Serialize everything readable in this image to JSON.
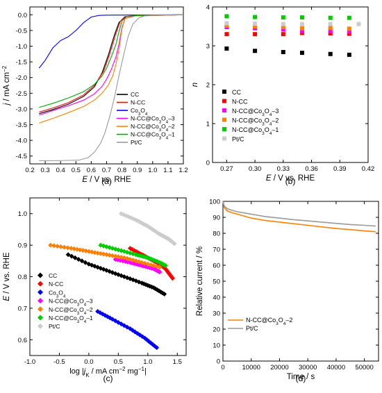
{
  "chart_data": [
    {
      "id": "a",
      "type": "line",
      "caption": "(a)",
      "xlabel": "E / V vs. RHE",
      "ylabel": "j / mA cm⁻²",
      "xlim": [
        0.2,
        1.2
      ],
      "ylim": [
        -4.75,
        0.25
      ],
      "xticks": [
        0.2,
        0.3,
        0.4,
        0.5,
        0.6,
        0.7,
        0.8,
        0.9,
        1.0,
        1.1,
        1.2
      ],
      "xtick_labels": [
        "0.2",
        "0.3",
        "0.4",
        "0.5",
        "0.6",
        "0.7",
        "0.8",
        "0.9",
        "1.0",
        "1.1",
        "1.2"
      ],
      "yticks": [
        0.0,
        -0.5,
        -1.0,
        -1.5,
        -2.0,
        -2.5,
        -3.0,
        -3.5,
        -4.0,
        -4.5
      ],
      "ytick_labels": [
        "0.0",
        "-0.5",
        "-1.0",
        "-1.5",
        "-2.0",
        "-2.5",
        "-3.0",
        "-3.5",
        "-4.0",
        "-4.5"
      ],
      "legend_position": "bottom-right",
      "series": [
        {
          "name": "CC",
          "color": "#000000",
          "points": [
            [
              0.26,
              -3.15
            ],
            [
              0.35,
              -3.02
            ],
            [
              0.45,
              -2.85
            ],
            [
              0.55,
              -2.6
            ],
            [
              0.62,
              -2.3
            ],
            [
              0.67,
              -1.85
            ],
            [
              0.71,
              -1.3
            ],
            [
              0.75,
              -0.65
            ],
            [
              0.78,
              -0.25
            ],
            [
              0.82,
              -0.06
            ],
            [
              0.9,
              -0.02
            ],
            [
              1.2,
              0.0
            ]
          ]
        },
        {
          "name": "N-CC",
          "color": "#ff0000",
          "points": [
            [
              0.26,
              -3.1
            ],
            [
              0.35,
              -2.97
            ],
            [
              0.45,
              -2.8
            ],
            [
              0.55,
              -2.55
            ],
            [
              0.62,
              -2.25
            ],
            [
              0.68,
              -1.8
            ],
            [
              0.72,
              -1.25
            ],
            [
              0.76,
              -0.6
            ],
            [
              0.79,
              -0.2
            ],
            [
              0.83,
              -0.05
            ],
            [
              0.9,
              -0.02
            ],
            [
              1.2,
              0.0
            ]
          ]
        },
        {
          "name": "Co₃O₄",
          "color": "#0000ff",
          "points": [
            [
              0.26,
              -1.7
            ],
            [
              0.3,
              -1.45
            ],
            [
              0.35,
              -1.05
            ],
            [
              0.4,
              -0.82
            ],
            [
              0.45,
              -0.7
            ],
            [
              0.5,
              -0.5
            ],
            [
              0.55,
              -0.25
            ],
            [
              0.6,
              -0.07
            ],
            [
              0.65,
              -0.02
            ],
            [
              0.7,
              -0.01
            ],
            [
              1.2,
              0.0
            ]
          ]
        },
        {
          "name": "N-CC@Co₃O₄–3",
          "color": "#ff00ff",
          "points": [
            [
              0.26,
              -3.2
            ],
            [
              0.35,
              -3.05
            ],
            [
              0.45,
              -2.9
            ],
            [
              0.55,
              -2.72
            ],
            [
              0.62,
              -2.52
            ],
            [
              0.67,
              -2.28
            ],
            [
              0.7,
              -2.05
            ],
            [
              0.73,
              -1.75
            ],
            [
              0.76,
              -1.35
            ],
            [
              0.78,
              -0.95
            ],
            [
              0.8,
              -0.4
            ],
            [
              0.82,
              -0.12
            ],
            [
              0.88,
              -0.04
            ],
            [
              1.2,
              0.0
            ]
          ]
        },
        {
          "name": "N-CC@Co₃O₄–2",
          "color": "#ff8000",
          "points": [
            [
              0.26,
              -3.45
            ],
            [
              0.35,
              -3.3
            ],
            [
              0.45,
              -3.12
            ],
            [
              0.55,
              -2.92
            ],
            [
              0.62,
              -2.72
            ],
            [
              0.67,
              -2.5
            ],
            [
              0.71,
              -2.25
            ],
            [
              0.74,
              -1.95
            ],
            [
              0.76,
              -1.6
            ],
            [
              0.78,
              -1.1
            ],
            [
              0.8,
              -0.45
            ],
            [
              0.82,
              -0.12
            ],
            [
              0.87,
              -0.04
            ],
            [
              1.2,
              0.0
            ]
          ]
        },
        {
          "name": "N-CC@Co₃O₄–1",
          "color": "#00aa00",
          "points": [
            [
              0.26,
              -2.95
            ],
            [
              0.35,
              -2.82
            ],
            [
              0.45,
              -2.65
            ],
            [
              0.55,
              -2.45
            ],
            [
              0.62,
              -2.22
            ],
            [
              0.67,
              -1.95
            ],
            [
              0.7,
              -1.7
            ],
            [
              0.73,
              -1.35
            ],
            [
              0.76,
              -0.95
            ],
            [
              0.78,
              -0.55
            ],
            [
              0.8,
              -0.2
            ],
            [
              0.83,
              -0.06
            ],
            [
              0.9,
              -0.02
            ],
            [
              1.2,
              0.0
            ]
          ]
        },
        {
          "name": "Pt/C",
          "color": "#999999",
          "points": [
            [
              0.26,
              -4.65
            ],
            [
              0.35,
              -4.65
            ],
            [
              0.45,
              -4.64
            ],
            [
              0.52,
              -4.63
            ],
            [
              0.58,
              -4.55
            ],
            [
              0.62,
              -4.38
            ],
            [
              0.66,
              -4.1
            ],
            [
              0.69,
              -3.75
            ],
            [
              0.72,
              -3.25
            ],
            [
              0.75,
              -2.65
            ],
            [
              0.78,
              -1.95
            ],
            [
              0.81,
              -1.3
            ],
            [
              0.84,
              -0.7
            ],
            [
              0.87,
              -0.3
            ],
            [
              0.91,
              -0.1
            ],
            [
              0.95,
              -0.03
            ],
            [
              1.0,
              -0.01
            ],
            [
              1.2,
              0.0
            ]
          ]
        }
      ]
    },
    {
      "id": "b",
      "type": "scatter",
      "caption": "(b)",
      "xlabel": "E / V vs. RHE",
      "ylabel": "n",
      "xlim": [
        0.255,
        0.42
      ],
      "ylim": [
        0,
        4
      ],
      "xticks": [
        0.27,
        0.3,
        0.33,
        0.36,
        0.39,
        0.42
      ],
      "xtick_labels": [
        "0.27",
        "0.30",
        "0.33",
        "0.36",
        "0.39",
        "0.42"
      ],
      "yticks": [
        0,
        1,
        2,
        3,
        4
      ],
      "ytick_labels": [
        "0",
        "1",
        "2",
        "3",
        "4"
      ],
      "legend_position": "bottom-left",
      "series": [
        {
          "name": "CC",
          "color": "#000000",
          "points": [
            [
              0.27,
              2.93
            ],
            [
              0.3,
              2.87
            ],
            [
              0.33,
              2.84
            ],
            [
              0.35,
              2.82
            ],
            [
              0.38,
              2.79
            ],
            [
              0.4,
              2.77
            ]
          ]
        },
        {
          "name": "N-CC",
          "color": "#ff0000",
          "points": [
            [
              0.27,
              3.3
            ],
            [
              0.3,
              3.3
            ],
            [
              0.33,
              3.3
            ],
            [
              0.35,
              3.33
            ],
            [
              0.38,
              3.32
            ],
            [
              0.4,
              3.31
            ]
          ]
        },
        {
          "name": "N-CC@Co₃O₄–3",
          "color": "#ff00ff",
          "points": [
            [
              0.27,
              3.48
            ],
            [
              0.3,
              3.45
            ],
            [
              0.33,
              3.42
            ],
            [
              0.35,
              3.38
            ],
            [
              0.38,
              3.38
            ],
            [
              0.4,
              3.37
            ]
          ]
        },
        {
          "name": "N-CC@Co₃O₄–2",
          "color": "#ff8000",
          "points": [
            [
              0.27,
              3.52
            ],
            [
              0.3,
              3.5
            ],
            [
              0.33,
              3.48
            ],
            [
              0.35,
              3.45
            ],
            [
              0.38,
              3.46
            ],
            [
              0.4,
              3.44
            ]
          ]
        },
        {
          "name": "N-CC@Co₃O₄–1",
          "color": "#00cc00",
          "points": [
            [
              0.27,
              3.76
            ],
            [
              0.3,
              3.74
            ],
            [
              0.33,
              3.73
            ],
            [
              0.35,
              3.73
            ],
            [
              0.38,
              3.72
            ],
            [
              0.4,
              3.72
            ]
          ]
        },
        {
          "name": "Pt/C",
          "color": "#cccccc",
          "points": [
            [
              0.27,
              3.58
            ],
            [
              0.3,
              3.57
            ],
            [
              0.33,
              3.56
            ],
            [
              0.35,
              3.56
            ],
            [
              0.38,
              3.56
            ],
            [
              0.41,
              3.56
            ]
          ]
        }
      ]
    },
    {
      "id": "c",
      "type": "scatter",
      "caption": "(c)",
      "xlabel": "log |j_K / mA cm⁻² mg⁻¹|",
      "ylabel": "E / V vs. RHE",
      "xlim": [
        -1.0,
        1.65
      ],
      "ylim": [
        0.55,
        1.05
      ],
      "xticks": [
        -1.0,
        -0.5,
        0.0,
        0.5,
        1.0,
        1.5
      ],
      "xtick_labels": [
        "-1.0",
        "-0.5",
        "0.0",
        "0.5",
        "1.0",
        "1.5"
      ],
      "yticks": [
        0.6,
        0.7,
        0.8,
        0.9,
        1.0
      ],
      "ytick_labels": [
        "0.6",
        "0.7",
        "0.8",
        "0.9",
        "1.0"
      ],
      "legend_position": "bottom-left",
      "series": [
        {
          "name": "CC",
          "color": "#000000",
          "points": [
            [
              -0.35,
              0.87
            ],
            [
              0.0,
              0.84
            ],
            [
              0.3,
              0.82
            ],
            [
              0.6,
              0.8
            ],
            [
              0.9,
              0.78
            ],
            [
              1.1,
              0.765
            ],
            [
              1.28,
              0.745
            ]
          ]
        },
        {
          "name": "N-CC",
          "color": "#ff0000",
          "points": [
            [
              0.7,
              0.89
            ],
            [
              0.9,
              0.87
            ],
            [
              1.05,
              0.855
            ],
            [
              1.2,
              0.84
            ],
            [
              1.3,
              0.825
            ],
            [
              1.42,
              0.795
            ]
          ]
        },
        {
          "name": "Co₃O₄",
          "color": "#0000ff",
          "points": [
            [
              0.15,
              0.69
            ],
            [
              0.4,
              0.665
            ],
            [
              0.7,
              0.635
            ],
            [
              0.95,
              0.605
            ],
            [
              1.15,
              0.575
            ]
          ]
        },
        {
          "name": "N-CC@Co₃O₄–3",
          "color": "#ff00ff",
          "points": [
            [
              0.45,
              0.855
            ],
            [
              0.7,
              0.845
            ],
            [
              0.9,
              0.835
            ],
            [
              1.1,
              0.825
            ],
            [
              1.2,
              0.815
            ]
          ]
        },
        {
          "name": "N-CC@Co₃O₄–2",
          "color": "#ff8000",
          "points": [
            [
              -0.65,
              0.9
            ],
            [
              -0.3,
              0.89
            ],
            [
              0.0,
              0.88
            ],
            [
              0.3,
              0.87
            ],
            [
              0.6,
              0.86
            ],
            [
              0.9,
              0.845
            ],
            [
              1.2,
              0.83
            ]
          ]
        },
        {
          "name": "N-CC@Co₃O₄–1",
          "color": "#00cc00",
          "points": [
            [
              0.2,
              0.9
            ],
            [
              0.5,
              0.885
            ],
            [
              0.8,
              0.87
            ],
            [
              1.0,
              0.86
            ],
            [
              1.2,
              0.845
            ],
            [
              1.3,
              0.835
            ]
          ]
        },
        {
          "name": "Pt/C",
          "color": "#cccccc",
          "points": [
            [
              0.55,
              1.0
            ],
            [
              0.8,
              0.98
            ],
            [
              1.0,
              0.96
            ],
            [
              1.2,
              0.935
            ],
            [
              1.35,
              0.92
            ],
            [
              1.45,
              0.905
            ]
          ]
        }
      ]
    },
    {
      "id": "d",
      "type": "line",
      "caption": "(d)",
      "xlabel": "Time / s",
      "ylabel": "Relative current / %",
      "xlim": [
        0,
        55000
      ],
      "ylim": [
        0,
        100
      ],
      "xticks": [
        0,
        10000,
        20000,
        30000,
        40000,
        50000
      ],
      "xtick_labels": [
        "0",
        "10000",
        "20000",
        "30000",
        "40000",
        "50000"
      ],
      "yticks": [
        0,
        10,
        20,
        30,
        40,
        50,
        60,
        70,
        80,
        90,
        100
      ],
      "ytick_labels": [
        "0",
        "10",
        "20",
        "30",
        "40",
        "50",
        "60",
        "70",
        "80",
        "90",
        "100"
      ],
      "legend_position": "bottom-left",
      "series": [
        {
          "name": "N-CC@Co₃O₄–2",
          "color": "#ff8000",
          "points": [
            [
              0,
              100
            ],
            [
              500,
              96
            ],
            [
              1500,
              94
            ],
            [
              3000,
              93
            ],
            [
              5000,
              92
            ],
            [
              10000,
              89.5
            ],
            [
              15000,
              88
            ],
            [
              20000,
              87
            ],
            [
              25000,
              86
            ],
            [
              30000,
              85
            ],
            [
              35000,
              84
            ],
            [
              40000,
              83
            ],
            [
              45000,
              82.3
            ],
            [
              50000,
              81.5
            ],
            [
              54000,
              81
            ]
          ]
        },
        {
          "name": "Pt/C",
          "color": "#999999",
          "points": [
            [
              0,
              100
            ],
            [
              500,
              97
            ],
            [
              1500,
              95.5
            ],
            [
              3000,
              94.5
            ],
            [
              5000,
              93.5
            ],
            [
              10000,
              92
            ],
            [
              15000,
              90.5
            ],
            [
              20000,
              89.5
            ],
            [
              25000,
              88.5
            ],
            [
              30000,
              87.8
            ],
            [
              35000,
              87
            ],
            [
              40000,
              86.2
            ],
            [
              45000,
              85.5
            ],
            [
              50000,
              85
            ],
            [
              54000,
              84.5
            ]
          ]
        }
      ]
    }
  ]
}
